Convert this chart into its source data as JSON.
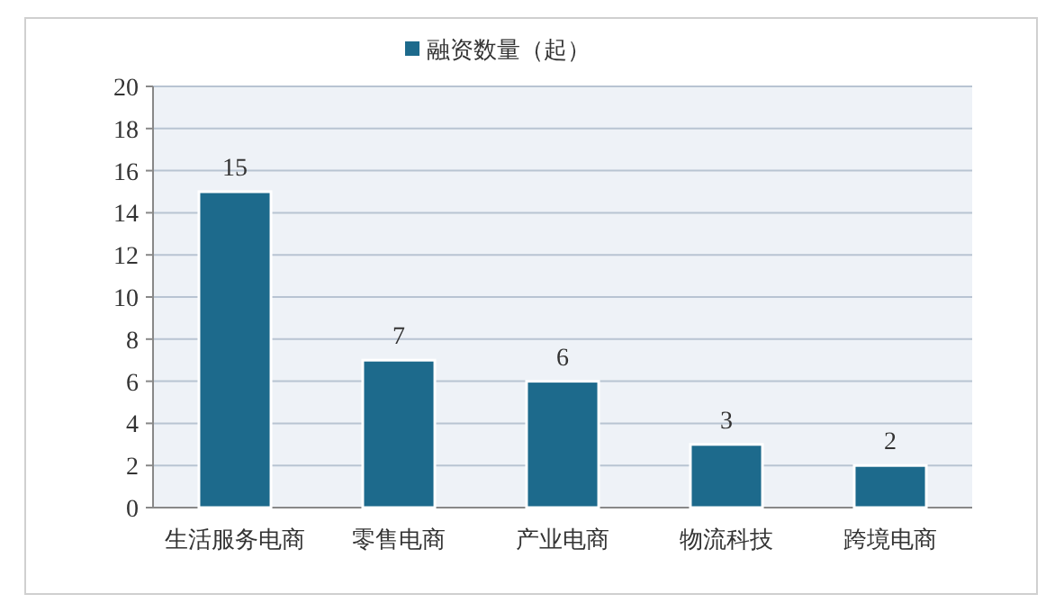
{
  "chart_data": {
    "type": "bar",
    "categories": [
      "生活服务电商",
      "零售电商",
      "产业电商",
      "物流科技",
      "跨境电商"
    ],
    "series": [
      {
        "name": "融资数量（起）",
        "color": "#1d6a8c",
        "values": [
          15,
          7,
          6,
          3,
          2
        ]
      }
    ],
    "ylim": [
      0,
      20
    ],
    "yticks": [
      0,
      2,
      4,
      6,
      8,
      10,
      12,
      14,
      16,
      18,
      20
    ],
    "grid": "y",
    "legend": "top",
    "data_labels": true
  }
}
